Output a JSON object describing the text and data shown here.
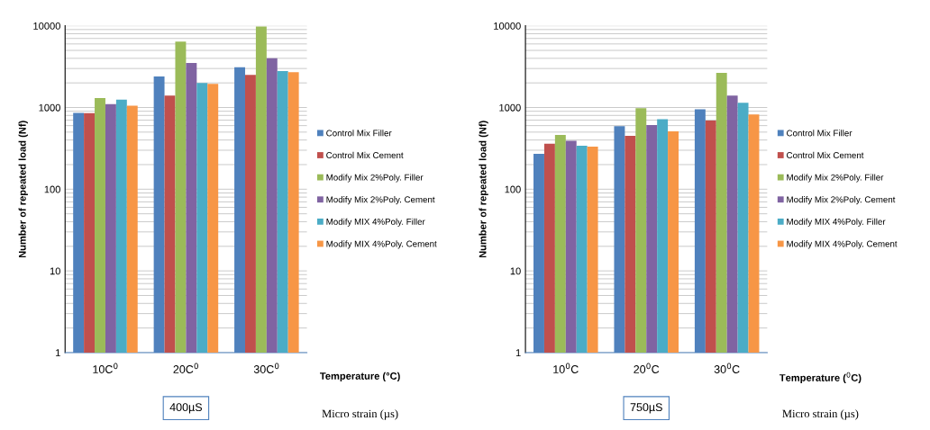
{
  "chart_data": [
    {
      "type": "bar",
      "ylabel": "Number of repeated load (Nf)",
      "xlabel": "Temperature (°C)",
      "categories": [
        "10C$^{0}$",
        "20C$^{0}$",
        "30C$^{0}$"
      ],
      "log": true,
      "ylim": [
        1,
        10000
      ],
      "yticks": [
        1,
        10,
        100,
        1000,
        10000
      ],
      "grid": "y",
      "legend": "right",
      "annotations": [
        "400µS",
        "Micro strain (µs)"
      ],
      "series": [
        {
          "name": "Control Mix Filler",
          "color": "#4f81bd",
          "values": [
            860,
            2400,
            3100
          ]
        },
        {
          "name": "Control Mix Cement",
          "color": "#c0504d",
          "values": [
            850,
            1400,
            2500
          ]
        },
        {
          "name": "Modify Mix 2%Poly. Filler",
          "color": "#9bbb59",
          "values": [
            1300,
            6400,
            9800
          ]
        },
        {
          "name": "Modify Mix 2%Poly. Cement",
          "color": "#8064a2",
          "values": [
            1100,
            3500,
            4000
          ]
        },
        {
          "name": "Modify MIX 4%Poly. Filler",
          "color": "#4bacc6",
          "values": [
            1250,
            2000,
            2800
          ]
        },
        {
          "name": "Modify MIX 4%Poly. Cement",
          "color": "#f79646",
          "values": [
            1050,
            1950,
            2700
          ]
        }
      ]
    },
    {
      "type": "bar",
      "ylabel": "Number of repeated load (Nf)",
      "xlabel": "Temperature ($^{0}$C)",
      "categories": [
        "10$^{0}$C",
        "20$^{0}$C",
        "30$^{0}$C"
      ],
      "log": true,
      "ylim": [
        1,
        10000
      ],
      "yticks": [
        1,
        10,
        100,
        1000,
        10000
      ],
      "grid": "y",
      "legend": "right",
      "annotations": [
        "750µS",
        "Micro strain (µs)"
      ],
      "series": [
        {
          "name": "Control Mix Filler",
          "color": "#4f81bd",
          "values": [
            270,
            590,
            950
          ]
        },
        {
          "name": "Control Mix Cement",
          "color": "#c0504d",
          "values": [
            360,
            450,
            690
          ]
        },
        {
          "name": "Modify Mix 2%Poly. Filler",
          "color": "#9bbb59",
          "values": [
            460,
            980,
            2650
          ]
        },
        {
          "name": "Modify Mix 2%Poly. Cement",
          "color": "#8064a2",
          "values": [
            390,
            610,
            1400
          ]
        },
        {
          "name": "Modify MIX 4%Poly. Filler",
          "color": "#4bacc6",
          "values": [
            340,
            720,
            1140
          ]
        },
        {
          "name": "Modify MIX 4%Poly. Cement",
          "color": "#f79646",
          "values": [
            330,
            510,
            820
          ]
        }
      ]
    }
  ]
}
